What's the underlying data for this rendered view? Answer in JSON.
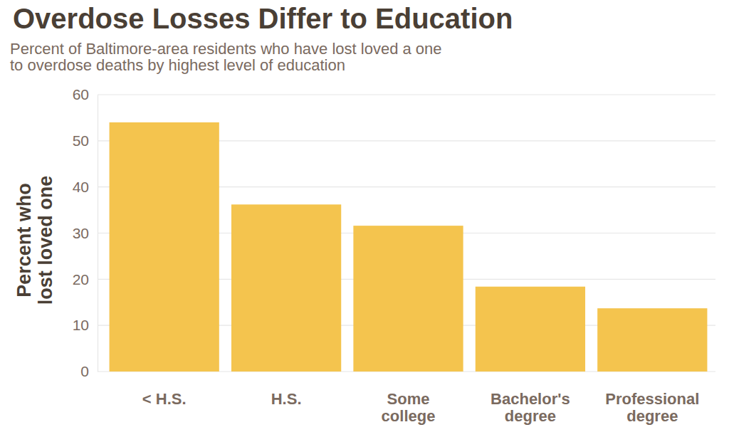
{
  "chart_data": {
    "type": "bar",
    "title": "Overdose Losses Differ to Education",
    "subtitle": [
      "Percent of Baltimore-area residents who have lost loved a one",
      "to overdose deaths by highest level of education"
    ],
    "y_label": [
      "Percent who",
      "lost loved one"
    ],
    "categories": [
      "< H.S.",
      "H.S.",
      "Some college",
      "Bachelor's degree",
      "Professional degree"
    ],
    "values": [
      54,
      36.2,
      31.6,
      18.4,
      13.7
    ],
    "color": "#f4c44e",
    "ylim": [
      0,
      60
    ],
    "yticks": [
      0,
      10,
      20,
      30,
      40,
      50,
      60
    ],
    "grid": true
  }
}
